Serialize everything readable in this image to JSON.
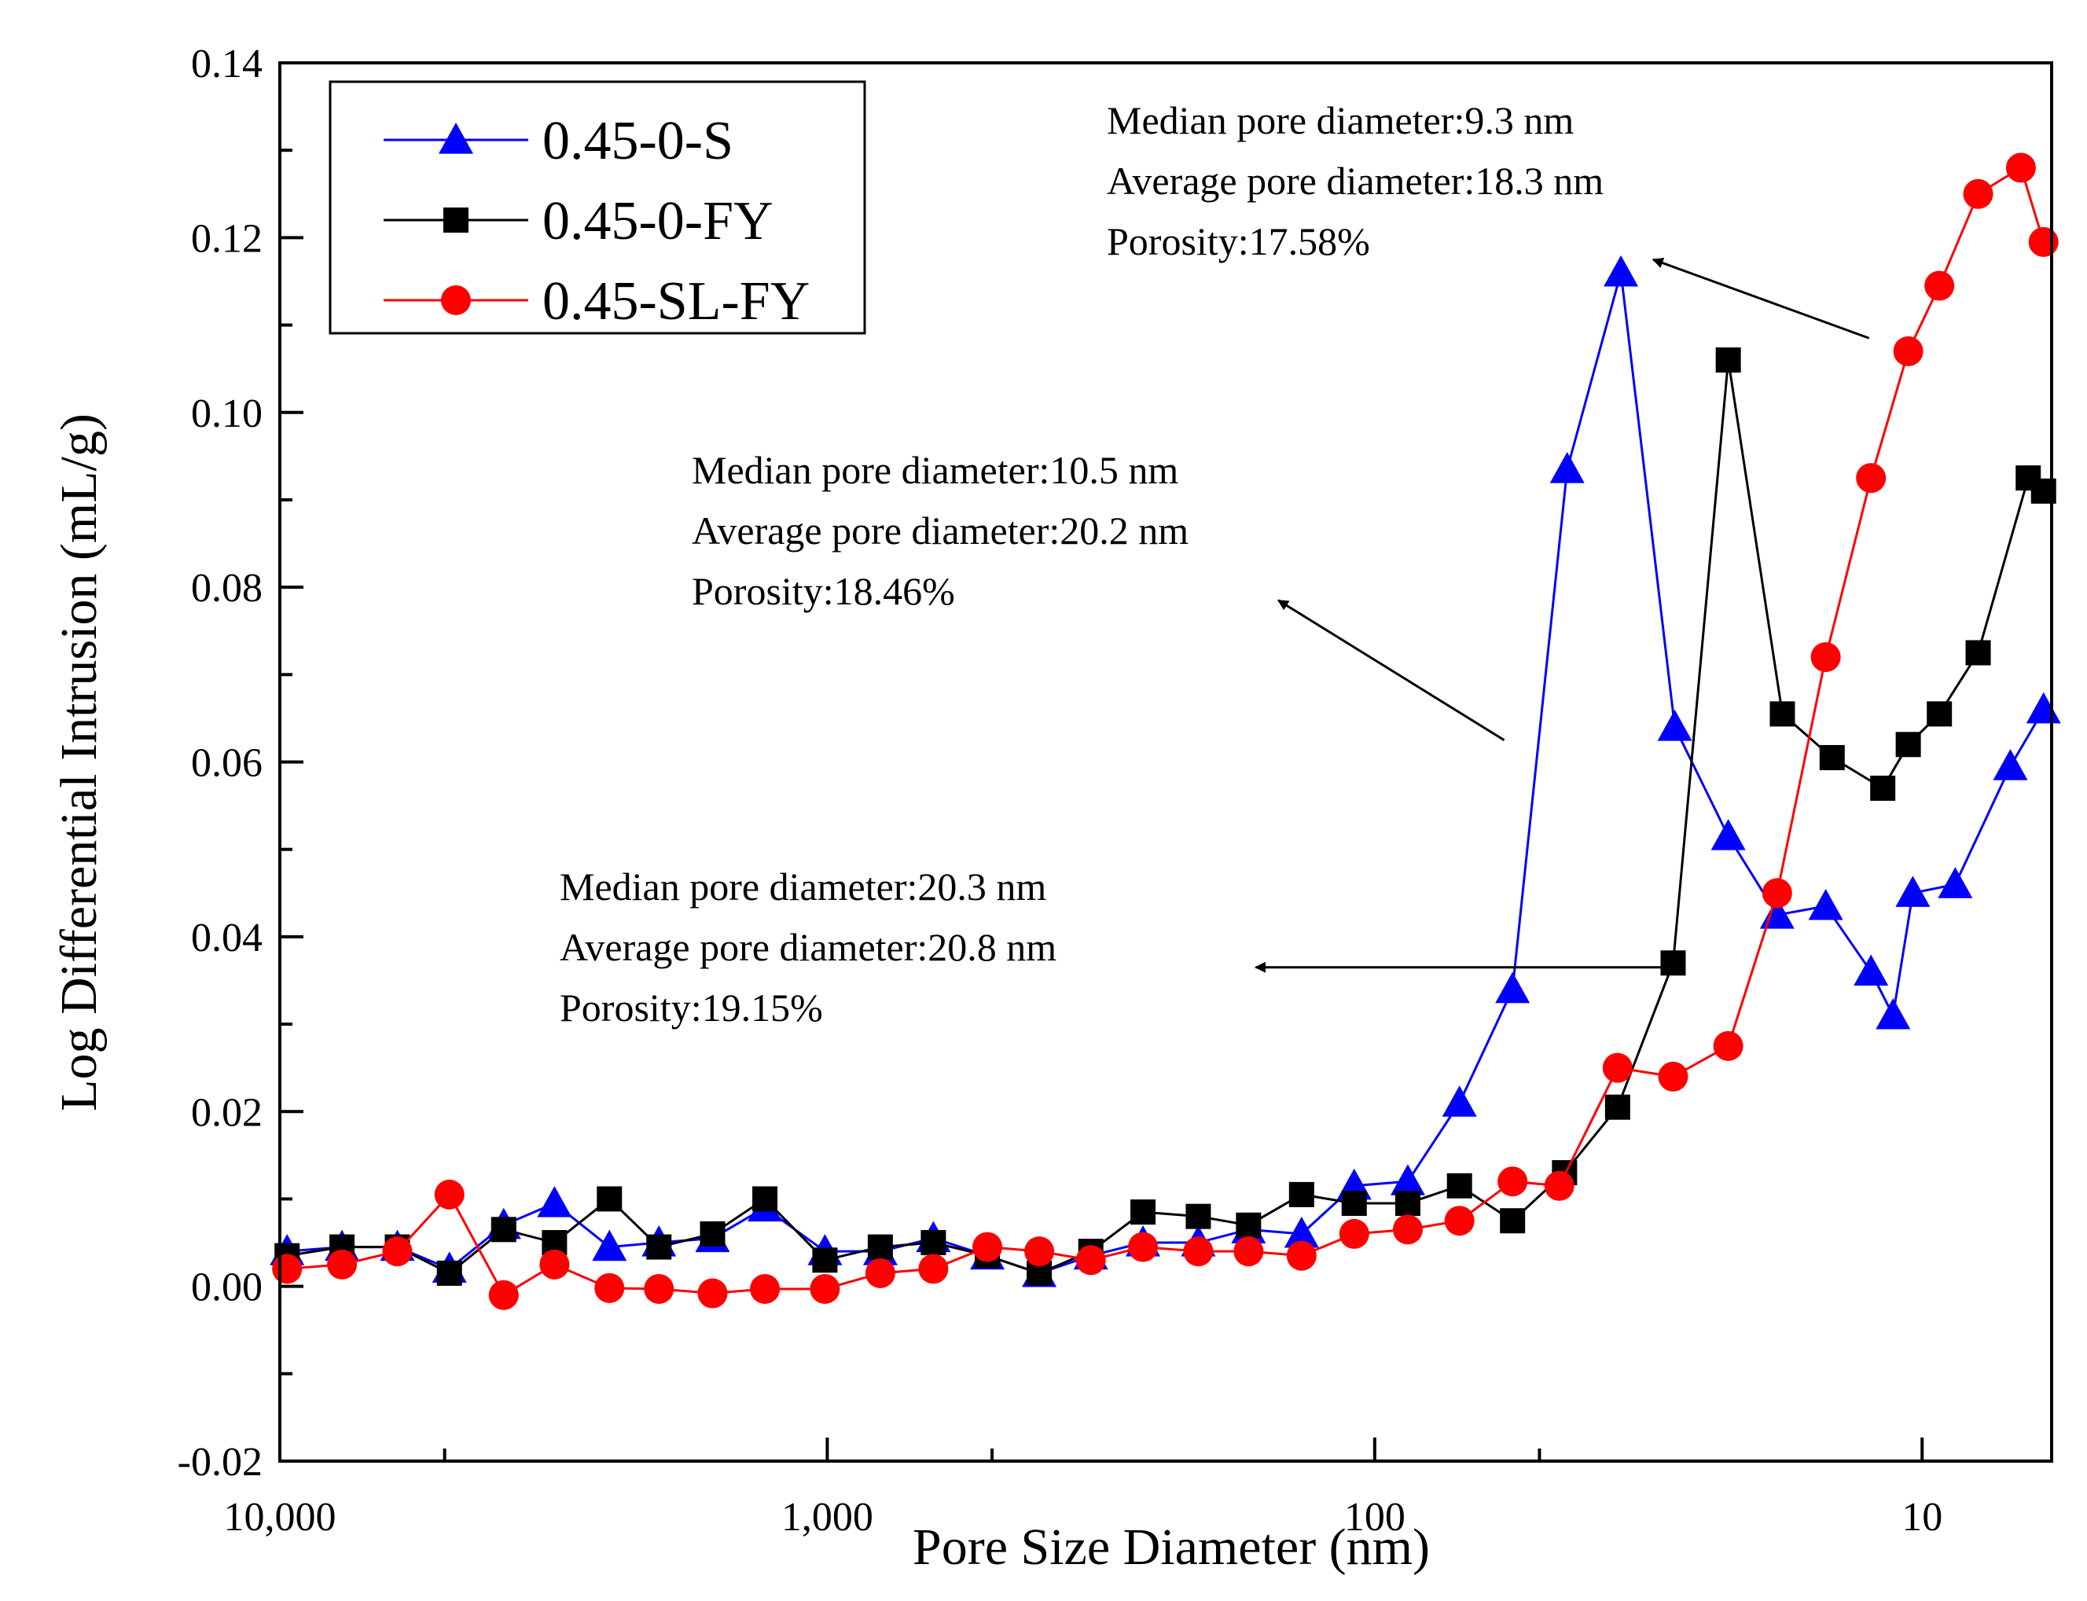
{
  "chart_data": {
    "type": "line",
    "title": "",
    "xlabel": "Pore Size Diameter (nm)",
    "ylabel": "Log Differential Intrusion (mL/g)",
    "xscale": "log",
    "x_reversed": true,
    "xlim": [
      10000,
      5.8
    ],
    "ylim": [
      -0.02,
      0.14
    ],
    "x_ticks": [
      {
        "value": 10000,
        "label": "10,000"
      },
      {
        "value": 1000,
        "label": "1,000"
      },
      {
        "value": 100,
        "label": "100"
      },
      {
        "value": 10,
        "label": "10"
      }
    ],
    "y_ticks": [
      {
        "value": -0.02,
        "label": "-0.02"
      },
      {
        "value": 0.0,
        "label": "0.00"
      },
      {
        "value": 0.02,
        "label": "0.02"
      },
      {
        "value": 0.04,
        "label": "0.04"
      },
      {
        "value": 0.06,
        "label": "0.06"
      },
      {
        "value": 0.08,
        "label": "0.08"
      },
      {
        "value": 0.1,
        "label": "0.10"
      },
      {
        "value": 0.12,
        "label": "0.12"
      },
      {
        "value": 0.14,
        "label": "0.14"
      }
    ],
    "legend_position": "top-left",
    "series": [
      {
        "name": "0.45-0-S",
        "color": "#0000ff",
        "marker": "triangle",
        "points": [
          [
            9700,
            0.004
          ],
          [
            7700,
            0.0045
          ],
          [
            6100,
            0.0045
          ],
          [
            4900,
            0.002
          ],
          [
            3900,
            0.007
          ],
          [
            3150,
            0.0095
          ],
          [
            2500,
            0.0045
          ],
          [
            2030,
            0.005
          ],
          [
            1620,
            0.0055
          ],
          [
            1300,
            0.009
          ],
          [
            1010,
            0.004
          ],
          [
            800,
            0.004
          ],
          [
            640,
            0.0055
          ],
          [
            510,
            0.0035
          ],
          [
            410,
            0.0015
          ],
          [
            330,
            0.0035
          ],
          [
            265,
            0.005
          ],
          [
            210,
            0.005
          ],
          [
            170,
            0.0065
          ],
          [
            136,
            0.006
          ],
          [
            109,
            0.0115
          ],
          [
            87,
            0.012
          ],
          [
            70,
            0.021
          ],
          [
            56,
            0.034
          ],
          [
            44.5,
            0.0935
          ],
          [
            35.5,
            0.116
          ],
          [
            28.3,
            0.064
          ],
          [
            22.6,
            0.0515
          ],
          [
            18.4,
            0.0425
          ],
          [
            15.0,
            0.0435
          ],
          [
            12.4,
            0.036
          ],
          [
            11.3,
            0.031
          ],
          [
            10.4,
            0.045
          ],
          [
            8.7,
            0.046
          ],
          [
            6.9,
            0.0595
          ],
          [
            6.0,
            0.066
          ]
        ]
      },
      {
        "name": "0.45-0-FY",
        "color": "#000000",
        "marker": "square",
        "points": [
          [
            9700,
            0.0035
          ],
          [
            7700,
            0.0045
          ],
          [
            6100,
            0.0045
          ],
          [
            4900,
            0.0015
          ],
          [
            3900,
            0.0065
          ],
          [
            3150,
            0.005
          ],
          [
            2500,
            0.01
          ],
          [
            2030,
            0.0045
          ],
          [
            1620,
            0.006
          ],
          [
            1300,
            0.01
          ],
          [
            1010,
            0.003
          ],
          [
            800,
            0.0045
          ],
          [
            640,
            0.005
          ],
          [
            510,
            0.0035
          ],
          [
            410,
            0.0015
          ],
          [
            330,
            0.004
          ],
          [
            265,
            0.0085
          ],
          [
            210,
            0.008
          ],
          [
            170,
            0.007
          ],
          [
            136,
            0.0105
          ],
          [
            109,
            0.0095
          ],
          [
            87,
            0.0095
          ],
          [
            70,
            0.0115
          ],
          [
            56,
            0.0075
          ],
          [
            45,
            0.013
          ],
          [
            36,
            0.0205
          ],
          [
            28.5,
            0.037
          ],
          [
            22.6,
            0.106
          ],
          [
            18.0,
            0.0655
          ],
          [
            14.6,
            0.0605
          ],
          [
            11.8,
            0.057
          ],
          [
            10.6,
            0.062
          ],
          [
            9.3,
            0.0655
          ],
          [
            7.9,
            0.0725
          ],
          [
            6.4,
            0.0925
          ],
          [
            6.0,
            0.091
          ]
        ]
      },
      {
        "name": "0.45-SL-FY",
        "color": "#ff0000",
        "marker": "circle",
        "points": [
          [
            9700,
            0.002
          ],
          [
            7700,
            0.0025
          ],
          [
            6100,
            0.004
          ],
          [
            4900,
            0.0105
          ],
          [
            3900,
            -0.001
          ],
          [
            3150,
            0.0025
          ],
          [
            2500,
            -0.0002
          ],
          [
            2030,
            -0.0003
          ],
          [
            1620,
            -0.0008
          ],
          [
            1300,
            -0.0003
          ],
          [
            1010,
            -0.0003
          ],
          [
            800,
            0.0015
          ],
          [
            640,
            0.002
          ],
          [
            510,
            0.0045
          ],
          [
            410,
            0.004
          ],
          [
            330,
            0.003
          ],
          [
            265,
            0.0045
          ],
          [
            210,
            0.004
          ],
          [
            170,
            0.004
          ],
          [
            136,
            0.0035
          ],
          [
            109,
            0.006
          ],
          [
            87,
            0.0065
          ],
          [
            70,
            0.0075
          ],
          [
            56,
            0.012
          ],
          [
            46,
            0.0115
          ],
          [
            36,
            0.025
          ],
          [
            28.5,
            0.024
          ],
          [
            22.6,
            0.0275
          ],
          [
            18.4,
            0.045
          ],
          [
            15.0,
            0.072
          ],
          [
            12.4,
            0.0925
          ],
          [
            10.6,
            0.107
          ],
          [
            9.3,
            0.1145
          ],
          [
            7.9,
            0.125
          ],
          [
            6.6,
            0.128
          ],
          [
            6.0,
            0.1195
          ]
        ]
      }
    ],
    "annotations": [
      {
        "lines": [
          "Median pore diameter:9.3 nm",
          "Average pore diameter:18.3 nm",
          "Porosity:17.58%"
        ],
        "arrow_from": [
          12.5,
          0.1085
        ],
        "arrow_to": [
          31,
          0.1175
        ]
      },
      {
        "lines": [
          "Median pore diameter:10.5 nm",
          "Average pore diameter:20.2 nm",
          "Porosity:18.46%"
        ],
        "arrow_from": [
          58,
          0.0625
        ],
        "arrow_to": [
          150,
          0.0785
        ]
      },
      {
        "lines": [
          "Median pore diameter:20.3 nm",
          "Average pore diameter:20.8 nm",
          "Porosity:19.15%"
        ],
        "arrow_from": [
          28.5,
          0.0365
        ],
        "arrow_to": [
          165,
          0.0365
        ]
      }
    ]
  }
}
